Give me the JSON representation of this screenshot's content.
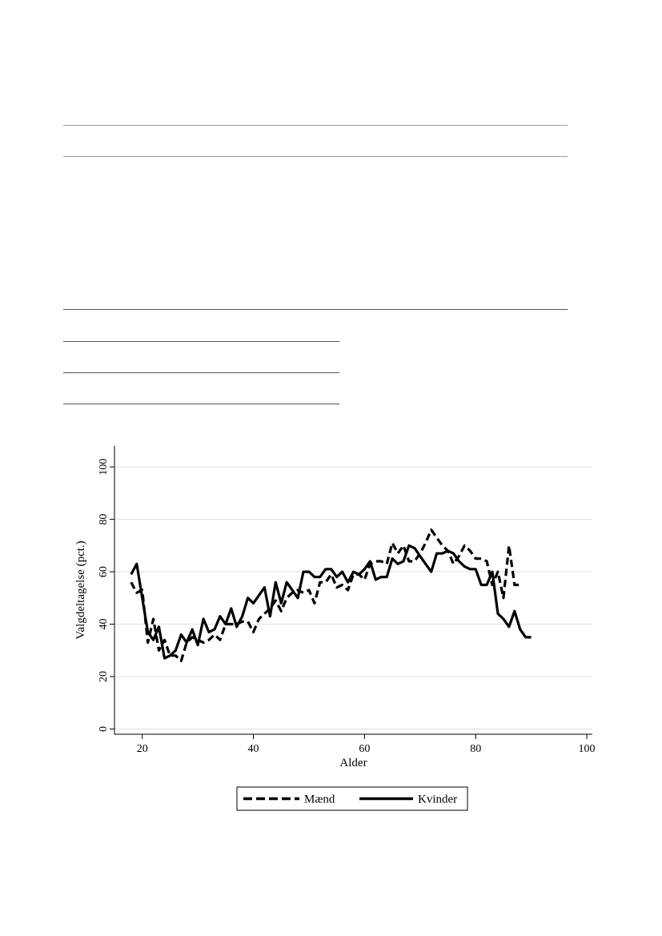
{
  "chart_data": {
    "type": "line",
    "title": "",
    "xlabel": "Alder",
    "ylabel": "Valgdeltagelse (pct.)",
    "xlim": [
      15,
      101
    ],
    "ylim": [
      -2,
      108
    ],
    "xticks": [
      20,
      40,
      60,
      80,
      100
    ],
    "yticks": [
      0,
      20,
      40,
      60,
      80,
      100
    ],
    "grid": true,
    "legend_position": "bottom",
    "series": [
      {
        "name": "Mænd",
        "style": "dashed",
        "color": "#000000",
        "x": [
          18,
          19,
          20,
          21,
          22,
          23,
          24,
          25,
          26,
          27,
          28,
          29,
          30,
          31,
          32,
          33,
          34,
          35,
          36,
          37,
          38,
          39,
          40,
          41,
          42,
          43,
          44,
          45,
          46,
          47,
          48,
          49,
          50,
          51,
          52,
          53,
          54,
          55,
          56,
          57,
          58,
          59,
          60,
          61,
          62,
          63,
          64,
          65,
          66,
          67,
          68,
          69,
          70,
          71,
          72,
          73,
          74,
          75,
          76,
          77,
          78,
          79,
          80,
          81,
          82,
          83,
          84,
          85,
          86,
          87,
          88
        ],
        "values": [
          56,
          52,
          53,
          33,
          42,
          30,
          34,
          28,
          28,
          26,
          33,
          35,
          34,
          33,
          34,
          36,
          34,
          40,
          40,
          40,
          41,
          41,
          37,
          42,
          44,
          46,
          49,
          45,
          50,
          52,
          53,
          52,
          53,
          48,
          56,
          56,
          59,
          54,
          55,
          53,
          59,
          59,
          57,
          63,
          64,
          64,
          63,
          71,
          67,
          70,
          64,
          64,
          67,
          71,
          76,
          73,
          70,
          68,
          63,
          66,
          70,
          68,
          65,
          65,
          64,
          55,
          60,
          50,
          70,
          55,
          55
        ]
      },
      {
        "name": "Kvinder",
        "style": "solid",
        "color": "#000000",
        "x": [
          18,
          19,
          20,
          21,
          22,
          23,
          24,
          25,
          26,
          27,
          28,
          29,
          30,
          31,
          32,
          33,
          34,
          35,
          36,
          37,
          38,
          39,
          40,
          41,
          42,
          43,
          44,
          45,
          46,
          47,
          48,
          49,
          50,
          51,
          52,
          53,
          54,
          55,
          56,
          57,
          58,
          59,
          60,
          61,
          62,
          63,
          64,
          65,
          66,
          67,
          68,
          69,
          70,
          71,
          72,
          73,
          74,
          75,
          76,
          77,
          78,
          79,
          80,
          81,
          82,
          83,
          84,
          85,
          86,
          87,
          88,
          89,
          90
        ],
        "values": [
          59,
          63,
          50,
          37,
          34,
          39,
          27,
          28,
          30,
          36,
          33,
          38,
          32,
          42,
          37,
          38,
          43,
          40,
          46,
          39,
          43,
          50,
          48,
          51,
          54,
          43,
          56,
          48,
          56,
          53,
          50,
          60,
          60,
          58,
          58,
          61,
          61,
          58,
          60,
          56,
          60,
          59,
          61,
          64,
          57,
          58,
          58,
          65,
          63,
          64,
          70,
          69,
          66,
          63,
          60,
          67,
          67,
          68,
          67,
          64,
          62,
          61,
          61,
          55,
          55,
          60,
          44,
          42,
          39,
          45,
          38,
          35,
          35
        ]
      }
    ]
  }
}
